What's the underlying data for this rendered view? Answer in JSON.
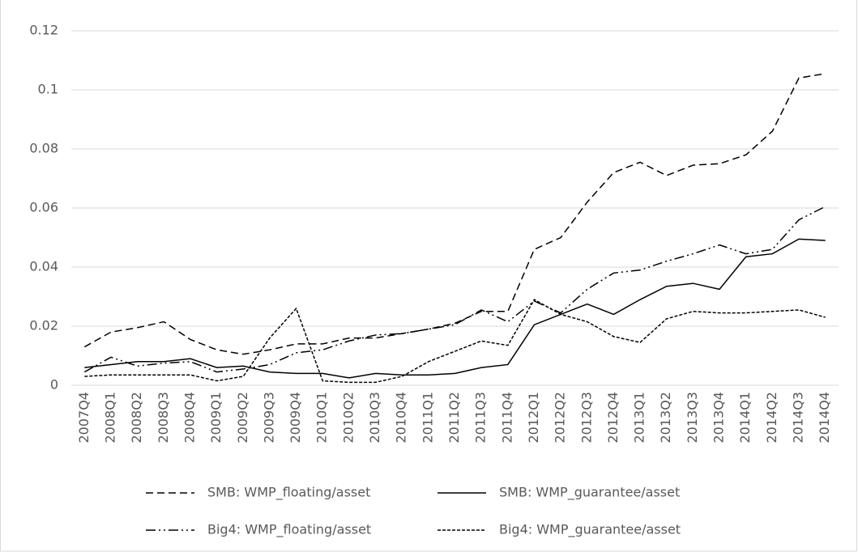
{
  "chart_data": {
    "type": "line",
    "categories": [
      "2007Q4",
      "2008Q1",
      "2008Q2",
      "2008Q3",
      "2008Q4",
      "2009Q1",
      "2009Q2",
      "2009Q3",
      "2009Q4",
      "2010Q1",
      "2010Q2",
      "2010Q3",
      "2010Q4",
      "2011Q1",
      "2011Q2",
      "2011Q3",
      "2011Q4",
      "2012Q1",
      "2012Q2",
      "2012Q3",
      "2012Q4",
      "2013Q1",
      "2013Q2",
      "2013Q3",
      "2013Q4",
      "2014Q1",
      "2014Q2",
      "2014Q3",
      "2014Q4"
    ],
    "series": [
      {
        "name": "SMB: WMP_floating/asset",
        "color": "#000000",
        "line_style": "dashed",
        "values": [
          0.013,
          0.018,
          0.0195,
          0.0215,
          0.0155,
          0.012,
          0.0105,
          0.012,
          0.014,
          0.014,
          0.016,
          0.016,
          0.0175,
          0.019,
          0.021,
          0.025,
          0.025,
          0.046,
          0.05,
          0.062,
          0.072,
          0.0755,
          0.071,
          0.0745,
          0.075,
          0.078,
          0.086,
          0.104,
          0.1055
        ]
      },
      {
        "name": "SMB: WMP_guarantee/asset",
        "color": "#000000",
        "line_style": "solid",
        "values": [
          0.006,
          0.007,
          0.008,
          0.008,
          0.009,
          0.006,
          0.0065,
          0.0045,
          0.004,
          0.004,
          0.0025,
          0.004,
          0.0035,
          0.0035,
          0.004,
          0.006,
          0.007,
          0.0205,
          0.024,
          0.0275,
          0.024,
          0.029,
          0.0335,
          0.0345,
          0.0325,
          0.0435,
          0.0445,
          0.0495,
          0.049
        ]
      },
      {
        "name": "Big4: WMP_floating/asset",
        "color": "#000000",
        "line_style": "dash-dot",
        "values": [
          0.0045,
          0.0095,
          0.0065,
          0.0075,
          0.008,
          0.0045,
          0.0055,
          0.007,
          0.011,
          0.012,
          0.015,
          0.017,
          0.0175,
          0.019,
          0.0205,
          0.0255,
          0.0215,
          0.0285,
          0.0245,
          0.0325,
          0.038,
          0.039,
          0.042,
          0.0445,
          0.0475,
          0.0445,
          0.046,
          0.056,
          0.0605
        ]
      },
      {
        "name": "Big4: WMP_guarantee/asset",
        "color": "#000000",
        "line_style": "short-dashed",
        "values": [
          0.003,
          0.0035,
          0.0035,
          0.0035,
          0.0035,
          0.0015,
          0.003,
          0.016,
          0.026,
          0.0015,
          0.001,
          0.001,
          0.003,
          0.008,
          0.0115,
          0.015,
          0.0135,
          0.029,
          0.024,
          0.0215,
          0.0165,
          0.0145,
          0.0225,
          0.025,
          0.0245,
          0.0245,
          0.025,
          0.0255,
          0.023
        ]
      }
    ],
    "ylim": [
      0,
      0.12
    ],
    "yticks": [
      0,
      0.02,
      0.04,
      0.06,
      0.08,
      0.1,
      0.12
    ],
    "grid": true,
    "legend": "bottom"
  }
}
